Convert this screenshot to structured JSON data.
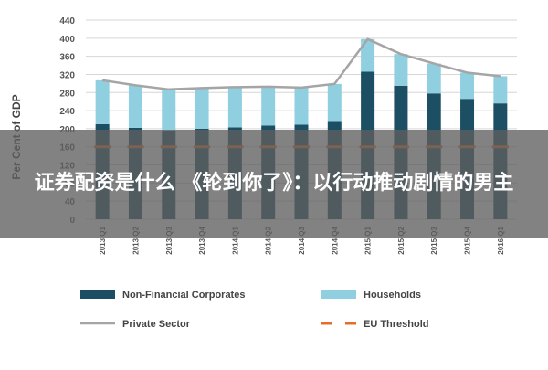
{
  "overlay": {
    "title": "证券配资是什么 《轮到你了》：以行动推动剧情的男主"
  },
  "chart_data": {
    "type": "bar",
    "stacked": true,
    "ylabel": "Per Cent of GDP",
    "xlabel": "",
    "ylim": [
      0,
      440
    ],
    "yticks": [
      0,
      40,
      80,
      120,
      160,
      200,
      240,
      280,
      320,
      360,
      400,
      440
    ],
    "grid": true,
    "legend_position": "bottom",
    "categories": [
      "2013 Q1",
      "2013 Q2",
      "2013 Q3",
      "2013 Q4",
      "2014 Q1",
      "2014 Q2",
      "2014 Q3",
      "2014 Q4",
      "2015 Q1",
      "2015 Q2",
      "2015 Q3",
      "2015 Q4",
      "2016 Q1"
    ],
    "series": [
      {
        "name": "Non-Financial Corporates",
        "kind": "bar",
        "color": "#1d4f64",
        "values": [
          210,
          202,
          196,
          200,
          203,
          207,
          209,
          217,
          326,
          295,
          278,
          266,
          256
        ]
      },
      {
        "name": "Households",
        "kind": "bar",
        "color": "#8fcfe0",
        "values": [
          97,
          94,
          91,
          90,
          89,
          86,
          82,
          82,
          72,
          70,
          66,
          58,
          60
        ]
      },
      {
        "name": "Private Sector",
        "kind": "line",
        "color": "#a5a5a5",
        "values": [
          307,
          296,
          287,
          290,
          292,
          293,
          291,
          299,
          398,
          365,
          344,
          324,
          316
        ]
      },
      {
        "name": "EU Threshold",
        "kind": "dashed-line",
        "color": "#e2702a",
        "values": [
          160,
          160,
          160,
          160,
          160,
          160,
          160,
          160,
          160,
          160,
          160,
          160,
          160
        ]
      }
    ]
  }
}
